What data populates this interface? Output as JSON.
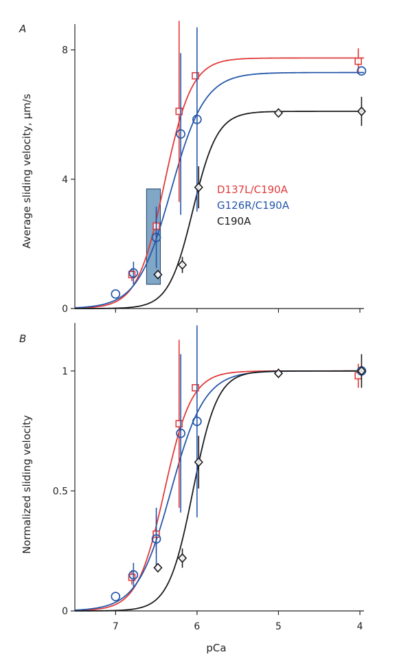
{
  "colors": {
    "D137L/C190A": "#e03a3a",
    "G126R/C190A": "#2456a8",
    "C190A": "#1a1a1a",
    "highlight_fill": "#4a82ae",
    "axis": "#222222"
  },
  "chart_data": [
    {
      "type": "scatter",
      "panel_label": "A",
      "ylabel": "Average sliding velocity, µm/s",
      "xlabel": "",
      "x_reversed": true,
      "xlim": [
        7.5,
        3.95
      ],
      "ylim": [
        0,
        8.8
      ],
      "yticks": [
        0,
        4,
        8
      ],
      "ytick_labels": [
        "0",
        "4",
        "8"
      ],
      "xticks": [
        7,
        6,
        5,
        4
      ],
      "xtick_labels": [
        "",
        "",
        "",
        ""
      ],
      "legend_position": "center-right",
      "legend": [
        "D137L/C190A",
        "G126R/C190A",
        "C190A"
      ],
      "highlight": {
        "x_range": [
          6.62,
          6.45
        ],
        "y_range": [
          0.75,
          3.7
        ]
      },
      "series": [
        {
          "name": "D137L/C190A",
          "marker": "square",
          "points": [
            {
              "x": 6.8,
              "y": 1.05,
              "err": 0.2
            },
            {
              "x": 6.5,
              "y": 2.55,
              "err": 0.5
            },
            {
              "x": 6.22,
              "y": 6.1,
              "err": 2.8
            },
            {
              "x": 6.02,
              "y": 7.2,
              "err": 0
            },
            {
              "x": 4.02,
              "y": 7.65,
              "err": 0.4
            }
          ],
          "fit": {
            "top": 7.75,
            "pCa50": 6.4,
            "n": 2.6
          }
        },
        {
          "name": "G126R/C190A",
          "marker": "circle",
          "points": [
            {
              "x": 7.0,
              "y": 0.45,
              "err": 0
            },
            {
              "x": 6.78,
              "y": 1.1,
              "err": 0.35
            },
            {
              "x": 6.5,
              "y": 2.2,
              "err": 0.95
            },
            {
              "x": 6.2,
              "y": 5.4,
              "err": 2.5
            },
            {
              "x": 6.0,
              "y": 5.85,
              "err": 2.85
            },
            {
              "x": 3.98,
              "y": 7.35,
              "err": 0
            }
          ],
          "fit": {
            "top": 7.3,
            "pCa50": 6.32,
            "n": 2.1
          }
        },
        {
          "name": "C190A",
          "marker": "diamond",
          "points": [
            {
              "x": 6.48,
              "y": 1.05,
              "err": 0
            },
            {
              "x": 6.18,
              "y": 1.35,
              "err": 0.25
            },
            {
              "x": 5.98,
              "y": 3.75,
              "err": 0.65
            },
            {
              "x": 5.0,
              "y": 6.05,
              "err": 0
            },
            {
              "x": 3.98,
              "y": 6.1,
              "err": 0.45
            }
          ],
          "fit": {
            "top": 6.1,
            "pCa50": 6.05,
            "n": 2.9
          }
        }
      ]
    },
    {
      "type": "scatter",
      "panel_label": "B",
      "ylabel": "Normalized sliding velocity",
      "xlabel": "pCa",
      "x_reversed": true,
      "xlim": [
        7.5,
        3.95
      ],
      "ylim": [
        0,
        1.2
      ],
      "yticks": [
        0,
        0.5,
        1
      ],
      "ytick_labels": [
        "0",
        "0.5",
        "1"
      ],
      "xticks": [
        7,
        6,
        5,
        4
      ],
      "xtick_labels": [
        "7",
        "6",
        "5",
        "4"
      ],
      "series": [
        {
          "name": "D137L/C190A",
          "marker": "square",
          "points": [
            {
              "x": 6.8,
              "y": 0.14,
              "err": 0.03
            },
            {
              "x": 6.5,
              "y": 0.32,
              "err": 0.08
            },
            {
              "x": 6.22,
              "y": 0.78,
              "err": 0.35
            },
            {
              "x": 6.02,
              "y": 0.93,
              "err": 0
            },
            {
              "x": 4.02,
              "y": 0.98,
              "err": 0.05
            }
          ],
          "fit": {
            "top": 1.0,
            "pCa50": 6.4,
            "n": 2.6
          }
        },
        {
          "name": "G126R/C190A",
          "marker": "circle",
          "points": [
            {
              "x": 7.0,
              "y": 0.06,
              "err": 0
            },
            {
              "x": 6.78,
              "y": 0.15,
              "err": 0.05
            },
            {
              "x": 6.5,
              "y": 0.3,
              "err": 0.13
            },
            {
              "x": 6.2,
              "y": 0.74,
              "err": 0.33
            },
            {
              "x": 6.0,
              "y": 0.79,
              "err": 0.4
            },
            {
              "x": 3.98,
              "y": 1.0,
              "err": 0
            }
          ],
          "fit": {
            "top": 1.0,
            "pCa50": 6.32,
            "n": 2.1
          }
        },
        {
          "name": "C190A",
          "marker": "diamond",
          "points": [
            {
              "x": 6.48,
              "y": 0.18,
              "err": 0
            },
            {
              "x": 6.18,
              "y": 0.22,
              "err": 0.04
            },
            {
              "x": 5.98,
              "y": 0.62,
              "err": 0.11
            },
            {
              "x": 5.0,
              "y": 0.99,
              "err": 0
            },
            {
              "x": 3.98,
              "y": 1.0,
              "err": 0.07
            }
          ],
          "fit": {
            "top": 1.0,
            "pCa50": 6.05,
            "n": 2.9
          }
        }
      ]
    }
  ]
}
